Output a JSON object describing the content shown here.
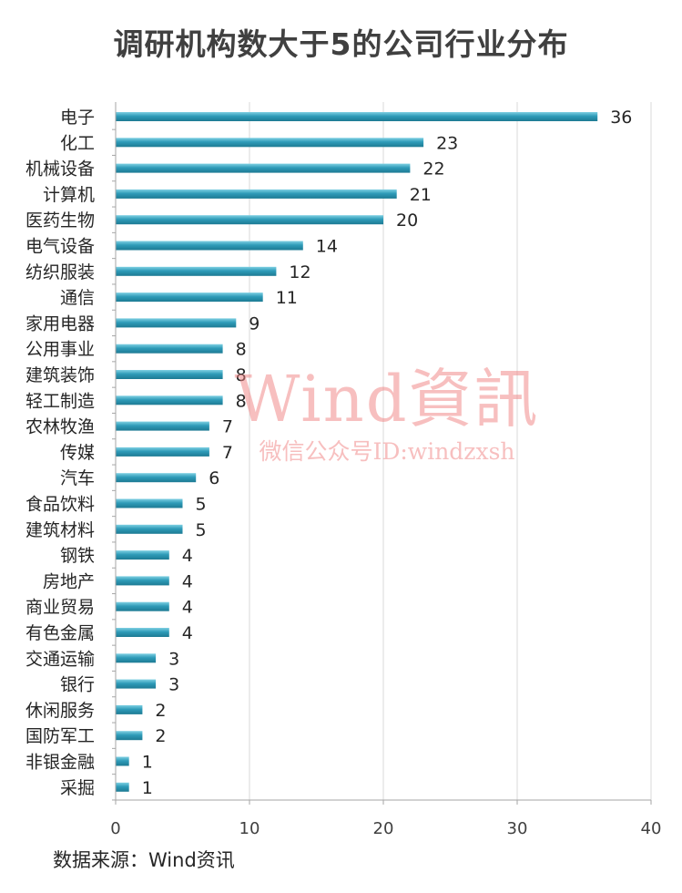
{
  "chart_data": {
    "type": "bar",
    "orientation": "horizontal",
    "title": "调研机构数大于5的公司行业分布",
    "categories": [
      "电子",
      "化工",
      "机械设备",
      "计算机",
      "医药生物",
      "电气设备",
      "纺织服装",
      "通信",
      "家用电器",
      "公用事业",
      "建筑装饰",
      "轻工制造",
      "农林牧渔",
      "传媒",
      "汽车",
      "食品饮料",
      "建筑材料",
      "钢铁",
      "房地产",
      "商业贸易",
      "有色金属",
      "交通运输",
      "银行",
      "休闲服务",
      "国防军工",
      "非银金融",
      "采掘"
    ],
    "values": [
      36,
      23,
      22,
      21,
      20,
      14,
      12,
      11,
      9,
      8,
      8,
      8,
      7,
      7,
      6,
      5,
      5,
      4,
      4,
      4,
      4,
      3,
      3,
      2,
      2,
      1,
      1
    ],
    "xlim": [
      0,
      40
    ],
    "xticks": [
      0,
      10,
      20,
      30,
      40
    ],
    "grid": true,
    "data_labels": true,
    "bar_color": "#2e9bb8",
    "source": "数据来源：Wind资讯",
    "watermark": {
      "main": "Wind資訊",
      "sub": "微信公众号ID:windzxsh",
      "color": "#f08080"
    }
  }
}
